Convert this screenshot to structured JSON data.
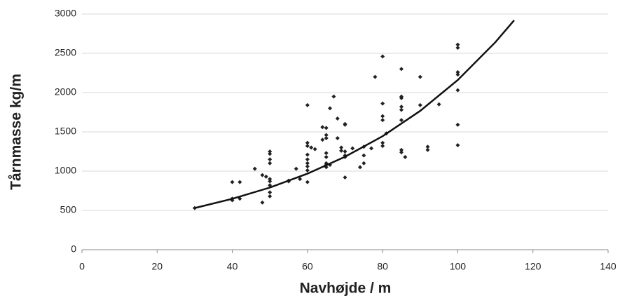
{
  "chart_data": {
    "type": "scatter",
    "xlabel": "Navhøjde / m",
    "ylabel": "Tårnmasse kg/m",
    "xlim": [
      0,
      140
    ],
    "ylim": [
      0,
      3000
    ],
    "xticks": [
      0,
      20,
      40,
      60,
      80,
      100,
      120,
      140
    ],
    "yticks": [
      0,
      500,
      1000,
      1500,
      2000,
      2500,
      3000
    ],
    "grid": true,
    "series": [
      {
        "color": "#222222",
        "x": [
          30,
          40,
          40,
          40,
          42,
          42,
          46,
          48,
          48,
          49,
          50,
          50,
          50,
          50,
          50,
          50,
          50,
          50,
          50,
          55,
          55,
          57,
          58,
          60,
          60,
          60,
          60,
          60,
          60,
          60,
          60,
          60,
          61,
          62,
          64,
          64,
          65,
          65,
          65,
          65,
          65,
          65,
          65,
          65,
          66,
          66,
          67,
          68,
          68,
          69,
          69,
          70,
          70,
          70,
          70,
          70,
          70,
          72,
          74,
          75,
          75,
          75,
          77,
          78,
          80,
          80,
          80,
          80,
          80,
          80,
          81,
          85,
          85,
          85,
          85,
          85,
          85,
          85,
          85,
          86,
          90,
          90,
          92,
          92,
          95,
          100,
          100,
          100,
          100,
          100,
          100,
          100
        ],
        "values": [
          530,
          860,
          650,
          630,
          860,
          650,
          1030,
          950,
          600,
          930,
          1250,
          1220,
          1150,
          1100,
          900,
          870,
          820,
          730,
          680,
          880,
          870,
          1030,
          900,
          1840,
          1360,
          1320,
          1210,
          1150,
          1100,
          1060,
          1010,
          860,
          1300,
          1280,
          1560,
          1400,
          1550,
          1460,
          1420,
          1230,
          1180,
          1100,
          1080,
          1050,
          1080,
          1800,
          1950,
          1670,
          1420,
          1300,
          1260,
          1600,
          1590,
          1250,
          1200,
          1180,
          920,
          1290,
          1050,
          1310,
          1200,
          1100,
          1290,
          2200,
          2460,
          1860,
          1700,
          1650,
          1360,
          1320,
          1480,
          2300,
          1950,
          1930,
          1820,
          1780,
          1650,
          1270,
          1240,
          1180,
          2200,
          1840,
          1310,
          1270,
          1850,
          2610,
          2570,
          2260,
          2230,
          2030,
          1590,
          1330
        ]
      }
    ],
    "fit": {
      "color": "#111111",
      "x": [
        30,
        40,
        50,
        60,
        70,
        80,
        90,
        100,
        110,
        115
      ],
      "values": [
        530,
        648,
        791,
        968,
        1183,
        1445,
        1767,
        2160,
        2641,
        2920
      ]
    }
  }
}
